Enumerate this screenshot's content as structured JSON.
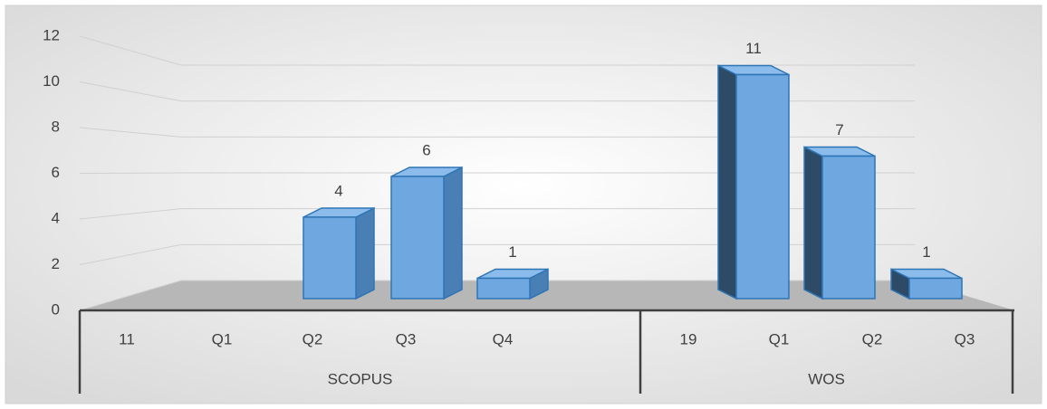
{
  "chart_data": {
    "type": "bar",
    "color": "#6fa8e0",
    "groups": [
      {
        "name": "SCOPUS",
        "categories": [
          "11",
          "Q1",
          "Q2",
          "Q3",
          "Q4"
        ],
        "values": [
          null,
          null,
          4,
          6,
          1
        ]
      },
      {
        "name": "WOS",
        "categories": [
          "19",
          "Q1",
          "Q2",
          "Q3"
        ],
        "values": [
          null,
          11,
          7,
          1
        ]
      }
    ],
    "ylim": [
      0,
      12
    ],
    "yticks": [
      0,
      2,
      4,
      6,
      8,
      10,
      12
    ],
    "grid": true
  }
}
